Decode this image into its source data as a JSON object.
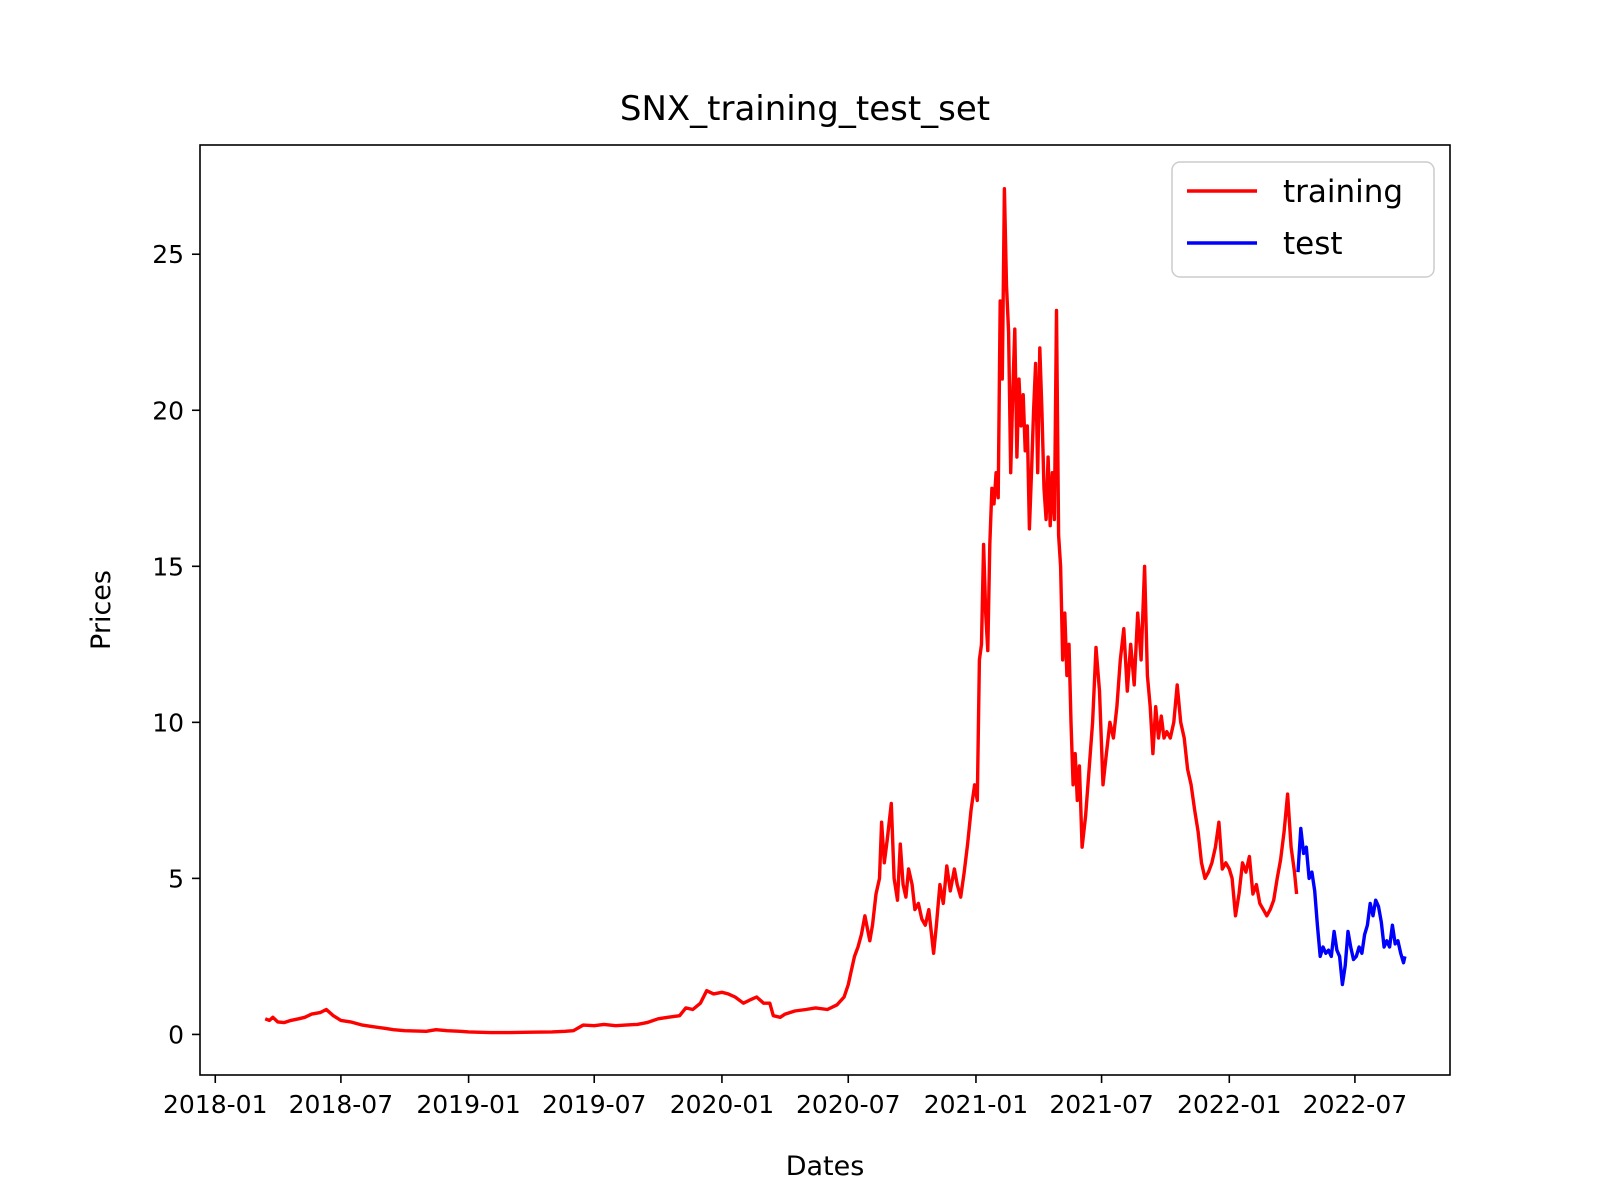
{
  "chart_data": {
    "type": "line",
    "title": "SNX_training_test_set",
    "xlabel": "Dates",
    "ylabel": "Prices",
    "x_ticks": [
      "2018-01",
      "2018-07",
      "2019-01",
      "2019-07",
      "2020-01",
      "2020-07",
      "2021-01",
      "2021-07",
      "2022-01",
      "2022-07"
    ],
    "y_ticks": [
      0,
      5,
      10,
      15,
      20,
      25
    ],
    "xlim": [
      "2017-12-10",
      "2022-11-15"
    ],
    "ylim": [
      -1.3,
      28.5
    ],
    "legend_position": "top-right",
    "grid": false,
    "series": [
      {
        "name": "training",
        "color": "#ff0000",
        "points": [
          [
            "2018-03-14",
            0.5
          ],
          [
            "2018-03-20",
            0.45
          ],
          [
            "2018-03-25",
            0.55
          ],
          [
            "2018-04-01",
            0.4
          ],
          [
            "2018-04-10",
            0.38
          ],
          [
            "2018-04-20",
            0.45
          ],
          [
            "2018-05-01",
            0.5
          ],
          [
            "2018-05-10",
            0.55
          ],
          [
            "2018-05-20",
            0.65
          ],
          [
            "2018-06-01",
            0.7
          ],
          [
            "2018-06-10",
            0.8
          ],
          [
            "2018-06-20",
            0.6
          ],
          [
            "2018-07-01",
            0.45
          ],
          [
            "2018-07-15",
            0.4
          ],
          [
            "2018-08-01",
            0.3
          ],
          [
            "2018-08-15",
            0.25
          ],
          [
            "2018-09-01",
            0.2
          ],
          [
            "2018-09-15",
            0.15
          ],
          [
            "2018-10-01",
            0.12
          ],
          [
            "2018-11-01",
            0.1
          ],
          [
            "2018-11-15",
            0.15
          ],
          [
            "2018-12-01",
            0.12
          ],
          [
            "2018-12-20",
            0.1
          ],
          [
            "2019-01-01",
            0.08
          ],
          [
            "2019-02-01",
            0.06
          ],
          [
            "2019-03-01",
            0.06
          ],
          [
            "2019-04-01",
            0.07
          ],
          [
            "2019-05-01",
            0.08
          ],
          [
            "2019-05-20",
            0.1
          ],
          [
            "2019-06-01",
            0.12
          ],
          [
            "2019-06-15",
            0.3
          ],
          [
            "2019-07-01",
            0.28
          ],
          [
            "2019-07-15",
            0.32
          ],
          [
            "2019-08-01",
            0.28
          ],
          [
            "2019-08-15",
            0.3
          ],
          [
            "2019-09-01",
            0.32
          ],
          [
            "2019-09-15",
            0.38
          ],
          [
            "2019-10-01",
            0.5
          ],
          [
            "2019-10-15",
            0.55
          ],
          [
            "2019-11-01",
            0.6
          ],
          [
            "2019-11-10",
            0.85
          ],
          [
            "2019-11-20",
            0.8
          ],
          [
            "2019-12-01",
            1.0
          ],
          [
            "2019-12-10",
            1.4
          ],
          [
            "2019-12-20",
            1.3
          ],
          [
            "2020-01-01",
            1.35
          ],
          [
            "2020-01-10",
            1.3
          ],
          [
            "2020-01-20",
            1.2
          ],
          [
            "2020-02-01",
            1.0
          ],
          [
            "2020-02-10",
            1.1
          ],
          [
            "2020-02-20",
            1.2
          ],
          [
            "2020-03-01",
            1.0
          ],
          [
            "2020-03-10",
            1.0
          ],
          [
            "2020-03-15",
            0.6
          ],
          [
            "2020-03-25",
            0.55
          ],
          [
            "2020-04-01",
            0.65
          ],
          [
            "2020-04-15",
            0.75
          ],
          [
            "2020-05-01",
            0.8
          ],
          [
            "2020-05-15",
            0.85
          ],
          [
            "2020-06-01",
            0.8
          ],
          [
            "2020-06-15",
            0.95
          ],
          [
            "2020-06-25",
            1.2
          ],
          [
            "2020-07-01",
            1.6
          ],
          [
            "2020-07-05",
            2.0
          ],
          [
            "2020-07-10",
            2.5
          ],
          [
            "2020-07-15",
            2.8
          ],
          [
            "2020-07-20",
            3.2
          ],
          [
            "2020-07-25",
            3.8
          ],
          [
            "2020-08-01",
            3.0
          ],
          [
            "2020-08-05",
            3.5
          ],
          [
            "2020-08-10",
            4.5
          ],
          [
            "2020-08-15",
            5.0
          ],
          [
            "2020-08-18",
            6.8
          ],
          [
            "2020-08-22",
            5.5
          ],
          [
            "2020-08-26",
            6.2
          ],
          [
            "2020-09-01",
            7.4
          ],
          [
            "2020-09-05",
            5.0
          ],
          [
            "2020-09-10",
            4.3
          ],
          [
            "2020-09-14",
            6.1
          ],
          [
            "2020-09-18",
            4.8
          ],
          [
            "2020-09-22",
            4.4
          ],
          [
            "2020-09-26",
            5.3
          ],
          [
            "2020-10-01",
            4.8
          ],
          [
            "2020-10-05",
            4.0
          ],
          [
            "2020-10-10",
            4.2
          ],
          [
            "2020-10-15",
            3.7
          ],
          [
            "2020-10-20",
            3.5
          ],
          [
            "2020-10-25",
            4.0
          ],
          [
            "2020-11-01",
            2.6
          ],
          [
            "2020-11-05",
            3.5
          ],
          [
            "2020-11-10",
            4.8
          ],
          [
            "2020-11-15",
            4.2
          ],
          [
            "2020-11-20",
            5.4
          ],
          [
            "2020-11-25",
            4.6
          ],
          [
            "2020-12-01",
            5.3
          ],
          [
            "2020-12-05",
            4.8
          ],
          [
            "2020-12-10",
            4.4
          ],
          [
            "2020-12-15",
            5.2
          ],
          [
            "2020-12-20",
            6.1
          ],
          [
            "2020-12-25",
            7.2
          ],
          [
            "2020-12-30",
            8.0
          ],
          [
            "2021-01-03",
            7.5
          ],
          [
            "2021-01-06",
            12.0
          ],
          [
            "2021-01-09",
            12.5
          ],
          [
            "2021-01-12",
            15.7
          ],
          [
            "2021-01-15",
            13.5
          ],
          [
            "2021-01-18",
            12.3
          ],
          [
            "2021-01-21",
            15.7
          ],
          [
            "2021-01-24",
            17.5
          ],
          [
            "2021-01-27",
            17.0
          ],
          [
            "2021-01-30",
            18.0
          ],
          [
            "2021-02-02",
            17.2
          ],
          [
            "2021-02-05",
            23.5
          ],
          [
            "2021-02-08",
            21.0
          ],
          [
            "2021-02-11",
            27.1
          ],
          [
            "2021-02-14",
            24.0
          ],
          [
            "2021-02-17",
            22.5
          ],
          [
            "2021-02-20",
            18.0
          ],
          [
            "2021-02-23",
            20.5
          ],
          [
            "2021-02-26",
            22.6
          ],
          [
            "2021-03-01",
            18.5
          ],
          [
            "2021-03-04",
            21.0
          ],
          [
            "2021-03-07",
            19.5
          ],
          [
            "2021-03-10",
            20.5
          ],
          [
            "2021-03-13",
            18.7
          ],
          [
            "2021-03-16",
            19.5
          ],
          [
            "2021-03-19",
            16.2
          ],
          [
            "2021-03-22",
            18.0
          ],
          [
            "2021-03-25",
            20.0
          ],
          [
            "2021-03-28",
            21.5
          ],
          [
            "2021-03-31",
            18.0
          ],
          [
            "2021-04-03",
            22.0
          ],
          [
            "2021-04-06",
            20.0
          ],
          [
            "2021-04-09",
            17.5
          ],
          [
            "2021-04-12",
            16.5
          ],
          [
            "2021-04-15",
            18.5
          ],
          [
            "2021-04-18",
            16.3
          ],
          [
            "2021-04-21",
            18.0
          ],
          [
            "2021-04-24",
            16.5
          ],
          [
            "2021-04-27",
            23.2
          ],
          [
            "2021-04-30",
            16.0
          ],
          [
            "2021-05-03",
            15.0
          ],
          [
            "2021-05-06",
            12.0
          ],
          [
            "2021-05-09",
            13.5
          ],
          [
            "2021-05-12",
            11.5
          ],
          [
            "2021-05-15",
            12.5
          ],
          [
            "2021-05-18",
            10.0
          ],
          [
            "2021-05-21",
            8.0
          ],
          [
            "2021-05-24",
            9.0
          ],
          [
            "2021-05-27",
            7.5
          ],
          [
            "2021-05-30",
            8.6
          ],
          [
            "2021-06-03",
            6.0
          ],
          [
            "2021-06-08",
            7.0
          ],
          [
            "2021-06-13",
            8.5
          ],
          [
            "2021-06-18",
            10.0
          ],
          [
            "2021-06-23",
            12.4
          ],
          [
            "2021-06-28",
            11.0
          ],
          [
            "2021-07-03",
            8.0
          ],
          [
            "2021-07-08",
            9.0
          ],
          [
            "2021-07-13",
            10.0
          ],
          [
            "2021-07-18",
            9.5
          ],
          [
            "2021-07-23",
            10.5
          ],
          [
            "2021-07-28",
            12.0
          ],
          [
            "2021-08-02",
            13.0
          ],
          [
            "2021-08-07",
            11.0
          ],
          [
            "2021-08-12",
            12.5
          ],
          [
            "2021-08-17",
            11.2
          ],
          [
            "2021-08-22",
            13.5
          ],
          [
            "2021-08-27",
            12.0
          ],
          [
            "2021-09-01",
            15.0
          ],
          [
            "2021-09-05",
            11.5
          ],
          [
            "2021-09-09",
            10.5
          ],
          [
            "2021-09-13",
            9.0
          ],
          [
            "2021-09-17",
            10.5
          ],
          [
            "2021-09-21",
            9.5
          ],
          [
            "2021-09-25",
            10.2
          ],
          [
            "2021-09-29",
            9.5
          ],
          [
            "2021-10-03",
            9.7
          ],
          [
            "2021-10-08",
            9.5
          ],
          [
            "2021-10-13",
            10.0
          ],
          [
            "2021-10-18",
            11.2
          ],
          [
            "2021-10-23",
            10.0
          ],
          [
            "2021-10-28",
            9.5
          ],
          [
            "2021-11-02",
            8.5
          ],
          [
            "2021-11-07",
            8.0
          ],
          [
            "2021-11-12",
            7.2
          ],
          [
            "2021-11-17",
            6.5
          ],
          [
            "2021-11-22",
            5.5
          ],
          [
            "2021-11-27",
            5.0
          ],
          [
            "2021-12-02",
            5.2
          ],
          [
            "2021-12-07",
            5.5
          ],
          [
            "2021-12-12",
            6.0
          ],
          [
            "2021-12-17",
            6.8
          ],
          [
            "2021-12-22",
            5.3
          ],
          [
            "2021-12-27",
            5.5
          ],
          [
            "2022-01-01",
            5.3
          ],
          [
            "2022-01-05",
            5.0
          ],
          [
            "2022-01-10",
            3.8
          ],
          [
            "2022-01-15",
            4.5
          ],
          [
            "2022-01-20",
            5.5
          ],
          [
            "2022-01-25",
            5.2
          ],
          [
            "2022-01-30",
            5.7
          ],
          [
            "2022-02-04",
            4.5
          ],
          [
            "2022-02-09",
            4.8
          ],
          [
            "2022-02-14",
            4.2
          ],
          [
            "2022-02-19",
            4.0
          ],
          [
            "2022-02-24",
            3.8
          ],
          [
            "2022-03-01",
            4.0
          ],
          [
            "2022-03-06",
            4.3
          ],
          [
            "2022-03-11",
            5.0
          ],
          [
            "2022-03-16",
            5.6
          ],
          [
            "2022-03-21",
            6.5
          ],
          [
            "2022-03-26",
            7.7
          ],
          [
            "2022-03-31",
            6.0
          ],
          [
            "2022-04-05",
            5.2
          ],
          [
            "2022-04-08",
            4.5
          ]
        ]
      },
      {
        "name": "test",
        "color": "#0000ff",
        "points": [
          [
            "2022-04-10",
            5.2
          ],
          [
            "2022-04-14",
            6.6
          ],
          [
            "2022-04-18",
            5.8
          ],
          [
            "2022-04-22",
            6.0
          ],
          [
            "2022-04-26",
            5.0
          ],
          [
            "2022-04-30",
            5.2
          ],
          [
            "2022-05-04",
            4.6
          ],
          [
            "2022-05-08",
            3.5
          ],
          [
            "2022-05-12",
            2.5
          ],
          [
            "2022-05-16",
            2.8
          ],
          [
            "2022-05-20",
            2.6
          ],
          [
            "2022-05-24",
            2.7
          ],
          [
            "2022-05-28",
            2.5
          ],
          [
            "2022-06-01",
            3.3
          ],
          [
            "2022-06-05",
            2.7
          ],
          [
            "2022-06-09",
            2.5
          ],
          [
            "2022-06-13",
            1.6
          ],
          [
            "2022-06-17",
            2.2
          ],
          [
            "2022-06-21",
            3.3
          ],
          [
            "2022-06-25",
            2.8
          ],
          [
            "2022-06-29",
            2.4
          ],
          [
            "2022-07-03",
            2.5
          ],
          [
            "2022-07-07",
            2.8
          ],
          [
            "2022-07-11",
            2.6
          ],
          [
            "2022-07-15",
            3.2
          ],
          [
            "2022-07-19",
            3.5
          ],
          [
            "2022-07-23",
            4.2
          ],
          [
            "2022-07-27",
            3.8
          ],
          [
            "2022-07-31",
            4.3
          ],
          [
            "2022-08-04",
            4.1
          ],
          [
            "2022-08-08",
            3.6
          ],
          [
            "2022-08-12",
            2.8
          ],
          [
            "2022-08-16",
            3.0
          ],
          [
            "2022-08-20",
            2.8
          ],
          [
            "2022-08-24",
            3.5
          ],
          [
            "2022-08-28",
            2.9
          ],
          [
            "2022-09-01",
            3.0
          ],
          [
            "2022-09-05",
            2.6
          ],
          [
            "2022-09-09",
            2.3
          ],
          [
            "2022-09-11",
            2.5
          ]
        ]
      }
    ]
  }
}
